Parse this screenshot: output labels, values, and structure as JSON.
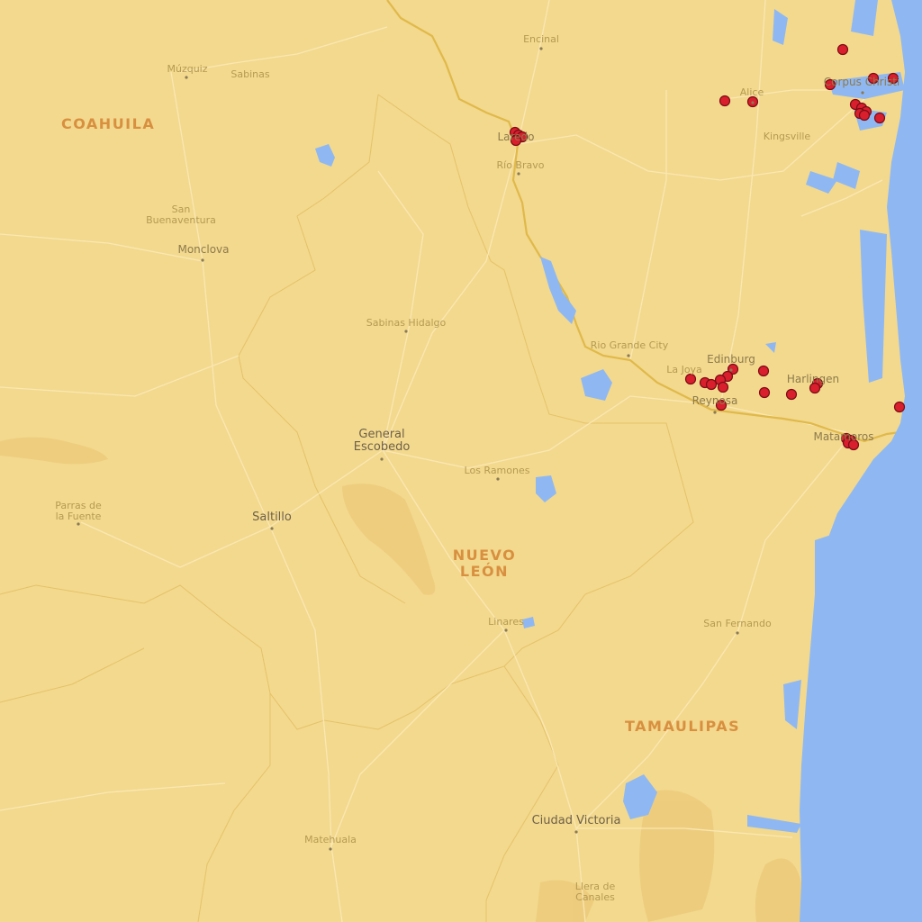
{
  "map": {
    "colors": {
      "land": "#f3d98e",
      "land_dark": "#eccb78",
      "water": "#8fb8f2",
      "road": "#fbe8b4",
      "border": "#e0b94a",
      "marker_fill": "#d91e2e",
      "marker_stroke": "#7a0d14"
    }
  },
  "states": [
    {
      "name": "COAHUILA"
    },
    {
      "name_line1": "NUEVO",
      "name_line2": "LEÓN"
    },
    {
      "name": "TAMAULIPAS"
    }
  ],
  "cities": {
    "encinal": "Encinal",
    "muzquiz": "Múzquiz",
    "sabinas": "Sabinas",
    "corpus_christi": "Corpus Christi",
    "alice": "Alice",
    "kingsville": "Kingsville",
    "laredo": "Laredo",
    "rio_bravo": "Río Bravo",
    "san_buenaventura_1": "San",
    "san_buenaventura_2": "Buenaventura",
    "monclova": "Monclova",
    "sabinas_hidalgo": "Sabinas Hidalgo",
    "rio_grande_city": "Rio Grande City",
    "edinburg": "Edinburg",
    "la_joya": "La Joya",
    "harlingen": "Harlingen",
    "reynosa": "Reynosa",
    "matamoros": "Matamoros",
    "general_escobedo_1": "General",
    "general_escobedo_2": "Escobedo",
    "los_ramones": "Los Ramones",
    "parras_1": "Parras de",
    "parras_2": "la Fuente",
    "saltillo": "Saltillo",
    "linares": "Linares",
    "san_fernando": "San Fernando",
    "ciudad_victoria": "Ciudad Victoria",
    "matehuala": "Matehuala",
    "llera_1": "Llera de",
    "llera_2": "Canales"
  }
}
